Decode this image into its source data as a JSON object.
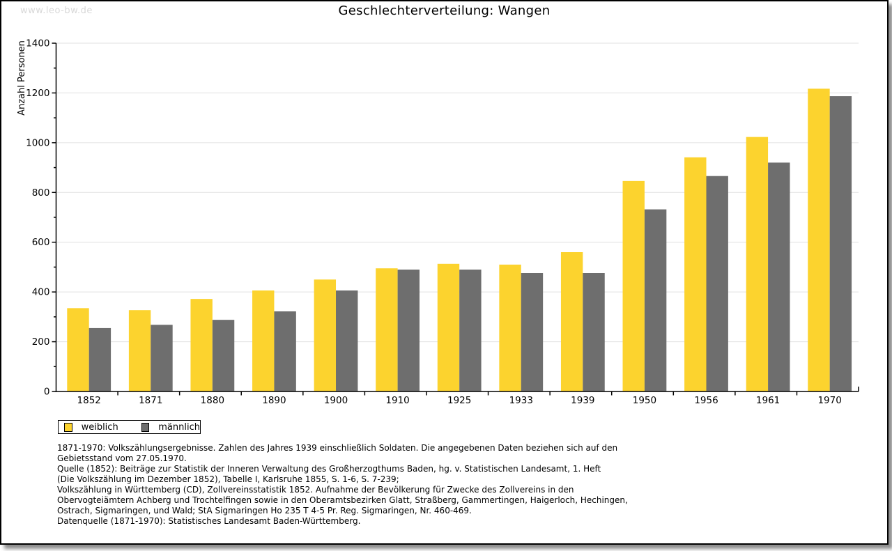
{
  "watermark": "www.leo-bw.de",
  "title": "Geschlechterverteilung: Wangen",
  "chart_data": {
    "type": "bar",
    "title": "Geschlechterverteilung: Wangen",
    "xlabel": "",
    "ylabel": "Anzahl Personen",
    "ylim": [
      0,
      1400
    ],
    "ytick_step": 200,
    "yminor_step": 100,
    "grid": true,
    "legend_position": "bottom-left",
    "categories": [
      "1852",
      "1871",
      "1880",
      "1890",
      "1900",
      "1910",
      "1925",
      "1933",
      "1939",
      "1950",
      "1956",
      "1961",
      "1970"
    ],
    "series": [
      {
        "name": "weiblich",
        "color": "#fcd32e",
        "values": [
          335,
          327,
          372,
          406,
          450,
          495,
          513,
          510,
          560,
          846,
          941,
          1023,
          1217
        ]
      },
      {
        "name": "männlich",
        "color": "#6e6e6e",
        "values": [
          255,
          268,
          288,
          322,
          406,
          490,
          490,
          476,
          476,
          732,
          866,
          920,
          1187
        ]
      }
    ]
  },
  "colors": {
    "axis": "#000000",
    "grid": "#e0e0e0",
    "tick_label": "#000000",
    "watermark": "#d8d8d8"
  },
  "footnotes": {
    "lines": [
      "1871-1970: Volkszählungsergebnisse. Zahlen des Jahres 1939 einschließlich Soldaten. Die angegebenen Daten beziehen sich auf den",
      "Gebietsstand vom 27.05.1970.",
      "Quelle (1852): Beiträge zur Statistik der Inneren Verwaltung des Großherzogthums Baden, hg. v. Statistischen Landesamt, 1. Heft",
      "(Die Volkszählung im Dezember 1852), Tabelle I, Karlsruhe 1855, S. 1-6, S. 7-239;",
      "Volkszählung in Württemberg (CD), Zollvereinsstatistik 1852. Aufnahme der Bevölkerung für Zwecke des Zollvereins in den",
      "Obervogteiämtern Achberg und Trochtelfingen sowie in den Oberamtsbezirken Glatt, Straßberg, Gammertingen, Haigerloch, Hechingen,",
      "Ostrach, Sigmaringen, und Wald; StA Sigmaringen Ho 235 T 4-5 Pr. Reg. Sigmaringen, Nr. 460-469."
    ],
    "source_line": "Datenquelle (1871-1970): Statistisches Landesamt Baden-Württemberg."
  }
}
